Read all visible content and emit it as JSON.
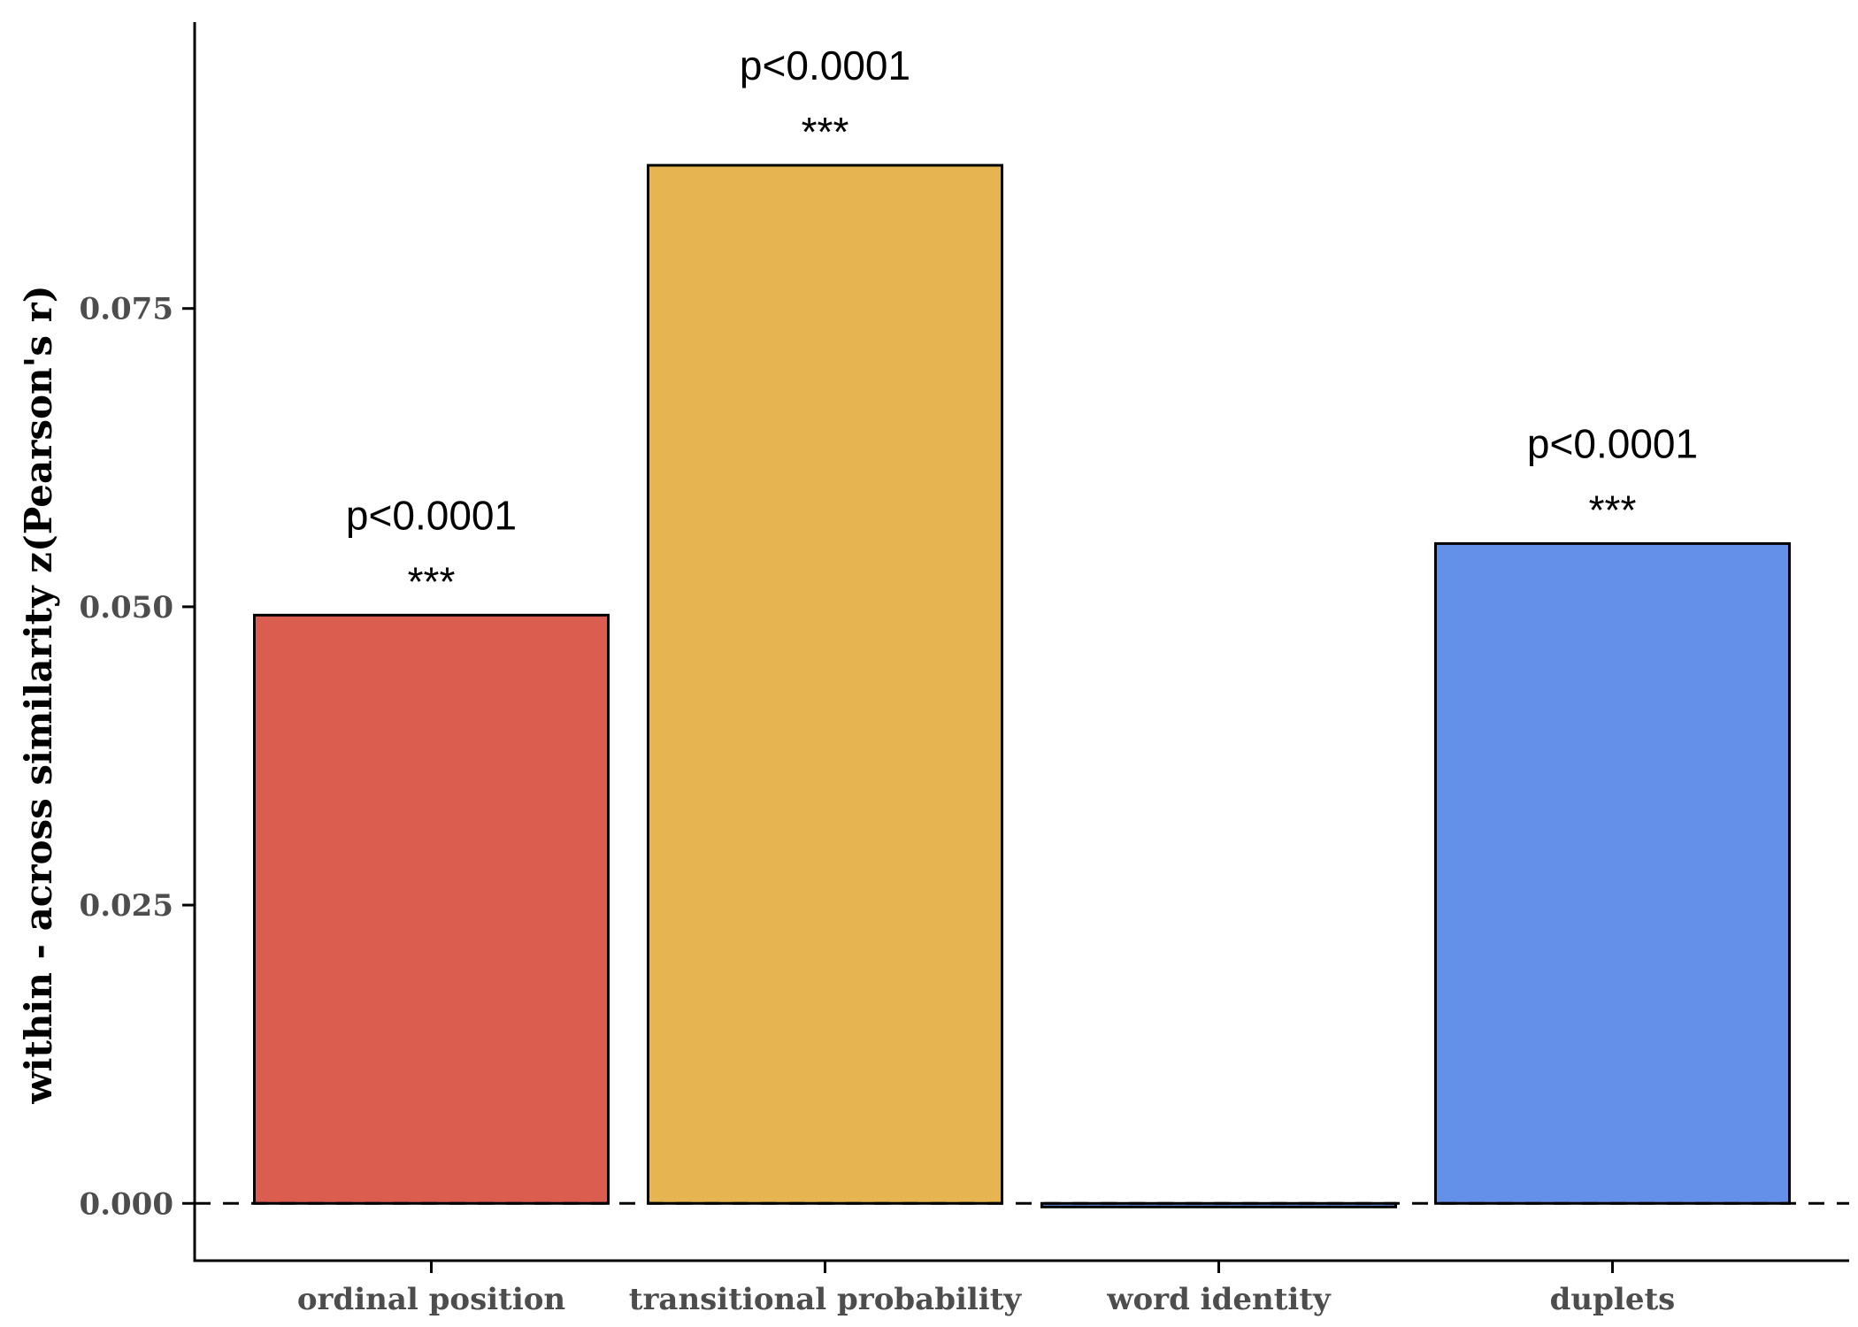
{
  "chart_data": {
    "type": "bar",
    "title": "",
    "xlabel": "",
    "ylabel": "within - across similarity z(Pearson's r)",
    "categories": [
      "ordinal position",
      "transitional probability",
      "word identity",
      "duplets"
    ],
    "values": [
      0.0493,
      0.087,
      -0.0003,
      0.0553
    ],
    "colors": [
      "#DB5D4F",
      "#E6B551",
      "#6590E9",
      "#6590E9"
    ],
    "edge_color": "#000000",
    "annotations": [
      {
        "category": "ordinal position",
        "p": "p<0.0001",
        "stars": "***"
      },
      {
        "category": "transitional probability",
        "p": "p<0.0001",
        "stars": "***"
      },
      {
        "category": "duplets",
        "p": "p<0.0001",
        "stars": "***"
      }
    ],
    "yticks": [
      0.0,
      0.025,
      0.05,
      0.075
    ],
    "ytick_labels": [
      "0.000",
      "0.025",
      "0.050",
      "0.075"
    ],
    "ylim": [
      -0.0048,
      0.099
    ],
    "reference_line": {
      "y": 0,
      "style": "dashed"
    },
    "grid": false,
    "legend": "none"
  }
}
